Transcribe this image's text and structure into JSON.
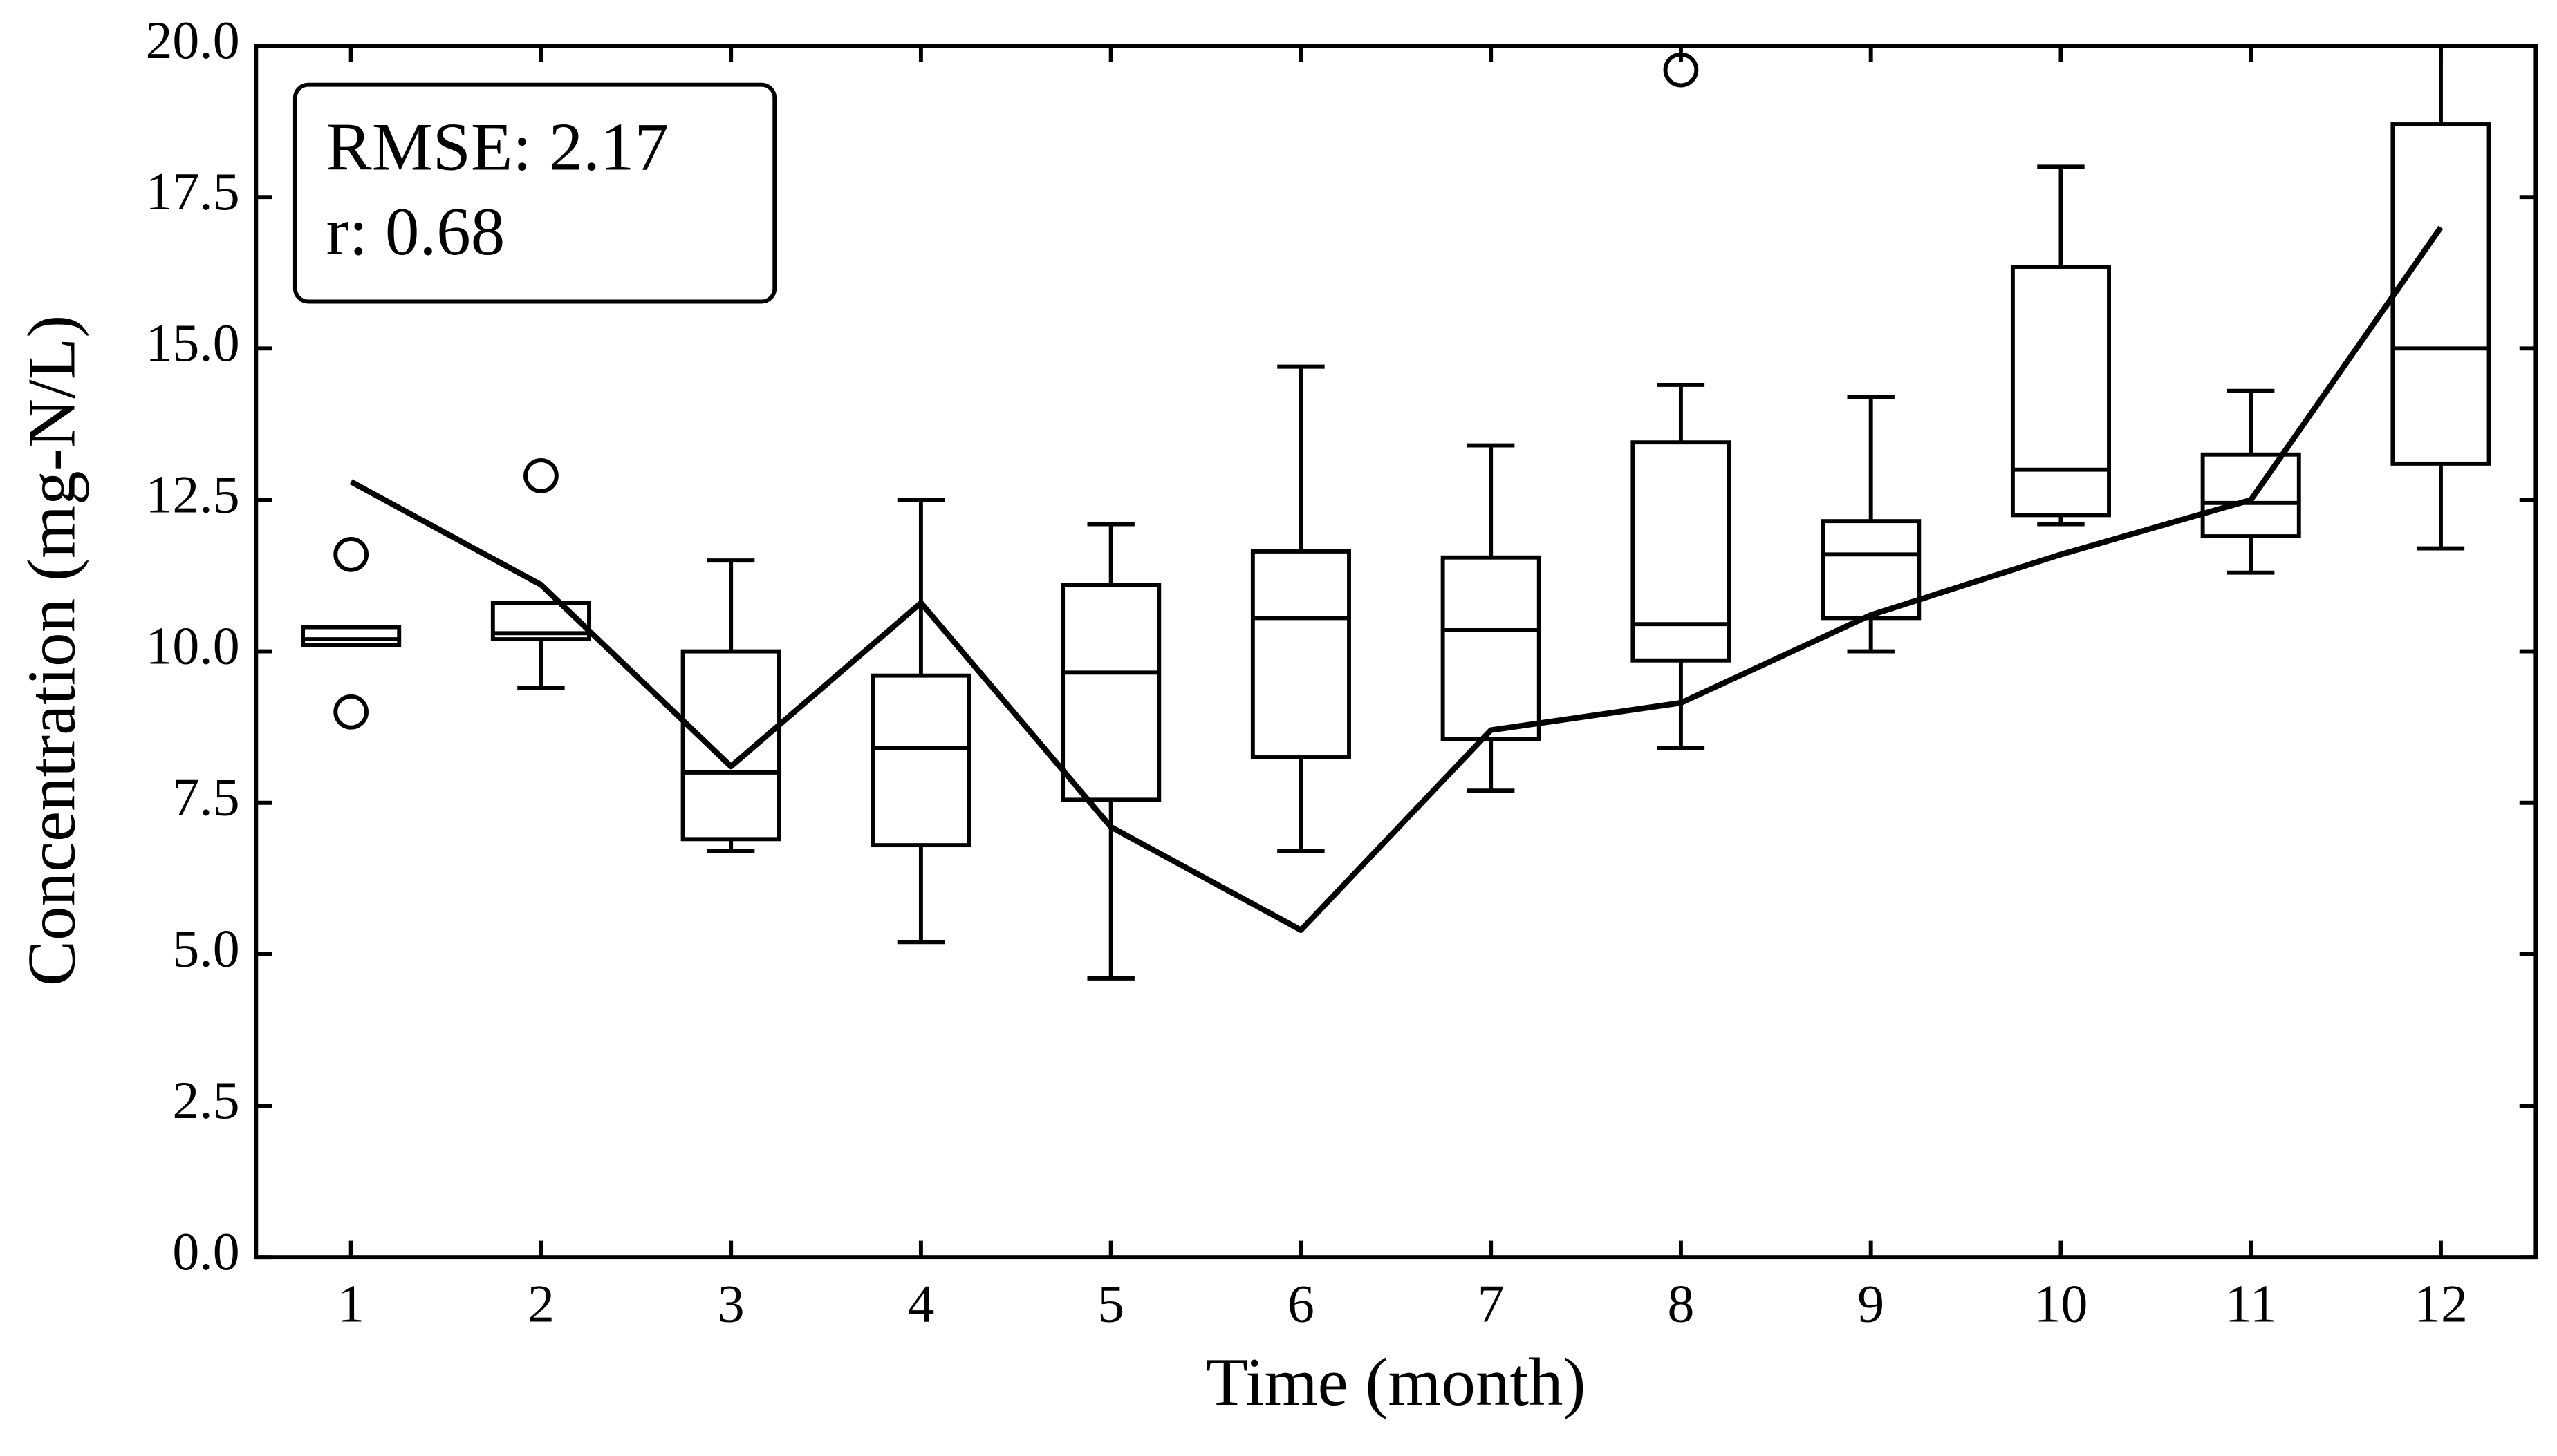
{
  "chart_data": {
    "type": "box",
    "xlabel": "Time (month)",
    "ylabel": "Concentration (mg-N/L)",
    "annotation": [
      "RMSE: 2.17",
      "r:  0.68"
    ],
    "x": [
      1,
      2,
      3,
      4,
      5,
      6,
      7,
      8,
      9,
      10,
      11,
      12
    ],
    "boxes": [
      {
        "whislo": 10.1,
        "q1": 10.1,
        "med": 10.2,
        "q3": 10.4,
        "whishi": 10.4,
        "fliers": [
          11.6,
          9.0
        ]
      },
      {
        "whislo": 9.4,
        "q1": 10.2,
        "med": 10.3,
        "q3": 10.8,
        "whishi": 10.8,
        "fliers": [
          12.9
        ]
      },
      {
        "whislo": 6.7,
        "q1": 6.9,
        "med": 8.0,
        "q3": 10.0,
        "whishi": 11.5,
        "fliers": []
      },
      {
        "whislo": 5.2,
        "q1": 6.8,
        "med": 8.4,
        "q3": 9.6,
        "whishi": 12.5,
        "fliers": []
      },
      {
        "whislo": 4.6,
        "q1": 7.55,
        "med": 9.65,
        "q3": 11.1,
        "whishi": 12.1,
        "fliers": []
      },
      {
        "whislo": 6.7,
        "q1": 8.25,
        "med": 10.55,
        "q3": 11.65,
        "whishi": 14.7,
        "fliers": []
      },
      {
        "whislo": 7.7,
        "q1": 8.55,
        "med": 10.35,
        "q3": 11.55,
        "whishi": 13.4,
        "fliers": []
      },
      {
        "whislo": 8.4,
        "q1": 9.85,
        "med": 10.45,
        "q3": 13.45,
        "whishi": 14.4,
        "fliers": [
          19.6
        ]
      },
      {
        "whislo": 10.0,
        "q1": 10.55,
        "med": 11.6,
        "q3": 12.15,
        "whishi": 14.2,
        "fliers": []
      },
      {
        "whislo": 12.1,
        "q1": 12.25,
        "med": 13.0,
        "q3": 16.35,
        "whishi": 18.0,
        "fliers": []
      },
      {
        "whislo": 11.3,
        "q1": 11.9,
        "med": 12.45,
        "q3": 13.25,
        "whishi": 14.3,
        "fliers": []
      },
      {
        "whislo": 11.7,
        "q1": 13.1,
        "med": 15.0,
        "q3": 18.7,
        "whishi": 20.4,
        "fliers": []
      }
    ],
    "line_values": [
      12.8,
      11.1,
      8.1,
      10.8,
      7.1,
      5.4,
      8.7,
      9.15,
      10.6,
      11.6,
      12.5,
      17.0
    ],
    "color": "#000000",
    "xlim": [
      0.5,
      12.5
    ],
    "xticks": [
      1,
      2,
      3,
      4,
      5,
      6,
      7,
      8,
      9,
      10,
      11,
      12
    ],
    "ylim": [
      0,
      20
    ],
    "yticks": [
      {
        "value": 0,
        "label": "0.0"
      },
      {
        "value": 2.5,
        "label": "2.5"
      },
      {
        "value": 5,
        "label": "5.0"
      },
      {
        "value": 7.5,
        "label": "7.5"
      },
      {
        "value": 10,
        "label": "10.0"
      },
      {
        "value": 12.5,
        "label": "12.5"
      },
      {
        "value": 15,
        "label": "15.0"
      },
      {
        "value": 17.5,
        "label": "17.5"
      },
      {
        "value": 20,
        "label": "20.0"
      }
    ]
  }
}
